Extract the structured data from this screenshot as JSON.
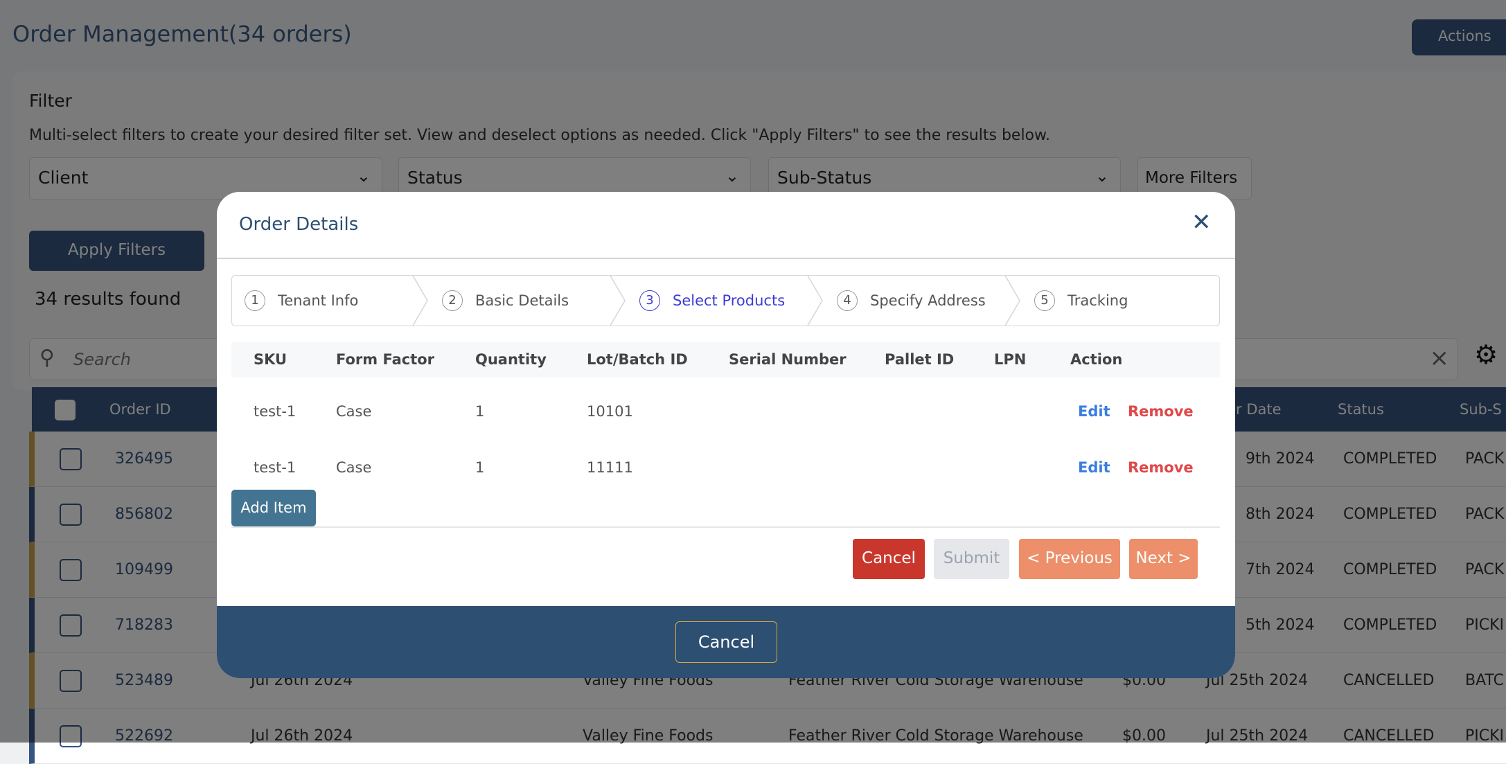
{
  "page": {
    "title": "Order Management(34 orders)",
    "actions_label": "Actions"
  },
  "filter": {
    "title": "Filter",
    "description": "Multi-select filters to create your desired filter set. View and deselect options as needed. Click \"Apply Filters\" to see the results below.",
    "client": "Client",
    "status": "Status",
    "sub_status": "Sub-Status",
    "more_filters": "More Filters",
    "apply": "Apply Filters",
    "results": "34 results found"
  },
  "search": {
    "placeholder": "Search"
  },
  "table": {
    "headers": [
      "Order ID",
      "Order Date",
      "Status",
      "Sub-S"
    ],
    "rows": [
      {
        "id": "326495",
        "date": "9th 2024",
        "status": "COMPLETED",
        "sub": "PACK"
      },
      {
        "id": "856802",
        "date": "8th 2024",
        "status": "COMPLETED",
        "sub": "PACK"
      },
      {
        "id": "109499",
        "date": "7th 2024",
        "status": "COMPLETED",
        "sub": "PACK"
      },
      {
        "id": "718283",
        "date": "5th 2024",
        "status": "COMPLETED",
        "sub": "PICKI"
      },
      {
        "id": "523489",
        "created": "Jul 26th 2024",
        "client": "Valley Fine Foods",
        "warehouse": "Feather River Cold Storage Warehouse",
        "amount": "$0.00",
        "date": "Jul 25th 2024",
        "status": "CANCELLED",
        "sub": "BATC"
      },
      {
        "id": "522692",
        "created": "Jul 26th 2024",
        "client": "Valley Fine Foods",
        "warehouse": "Feather River Cold Storage Warehouse",
        "amount": "$0.00",
        "date": "Jul 25th 2024",
        "status": "CANCELLED",
        "sub": "PICKI"
      }
    ]
  },
  "modal": {
    "title": "Order Details",
    "steps": [
      {
        "n": "1",
        "label": "Tenant Info"
      },
      {
        "n": "2",
        "label": "Basic Details"
      },
      {
        "n": "3",
        "label": "Select Products"
      },
      {
        "n": "4",
        "label": "Specify Address"
      },
      {
        "n": "5",
        "label": "Tracking"
      }
    ],
    "active_step": 3,
    "columns": [
      "SKU",
      "Form Factor",
      "Quantity",
      "Lot/Batch ID",
      "Serial Number",
      "Pallet ID",
      "LPN",
      "Action"
    ],
    "items": [
      {
        "sku": "test-1",
        "form": "Case",
        "qty": "1",
        "lot": "10101"
      },
      {
        "sku": "test-1",
        "form": "Case",
        "qty": "1",
        "lot": "11111"
      }
    ],
    "edit": "Edit",
    "remove": "Remove",
    "add_item": "Add Item",
    "cancel": "Cancel",
    "submit": "Submit",
    "previous": "< Previous",
    "next": "Next >",
    "footer_cancel": "Cancel"
  },
  "colors": {
    "navy": "#2d4f71",
    "gold": "#c9a24a",
    "cancel": "#c9372c",
    "orange": "#ec8f6a",
    "active_step": "#3b3bd6"
  }
}
